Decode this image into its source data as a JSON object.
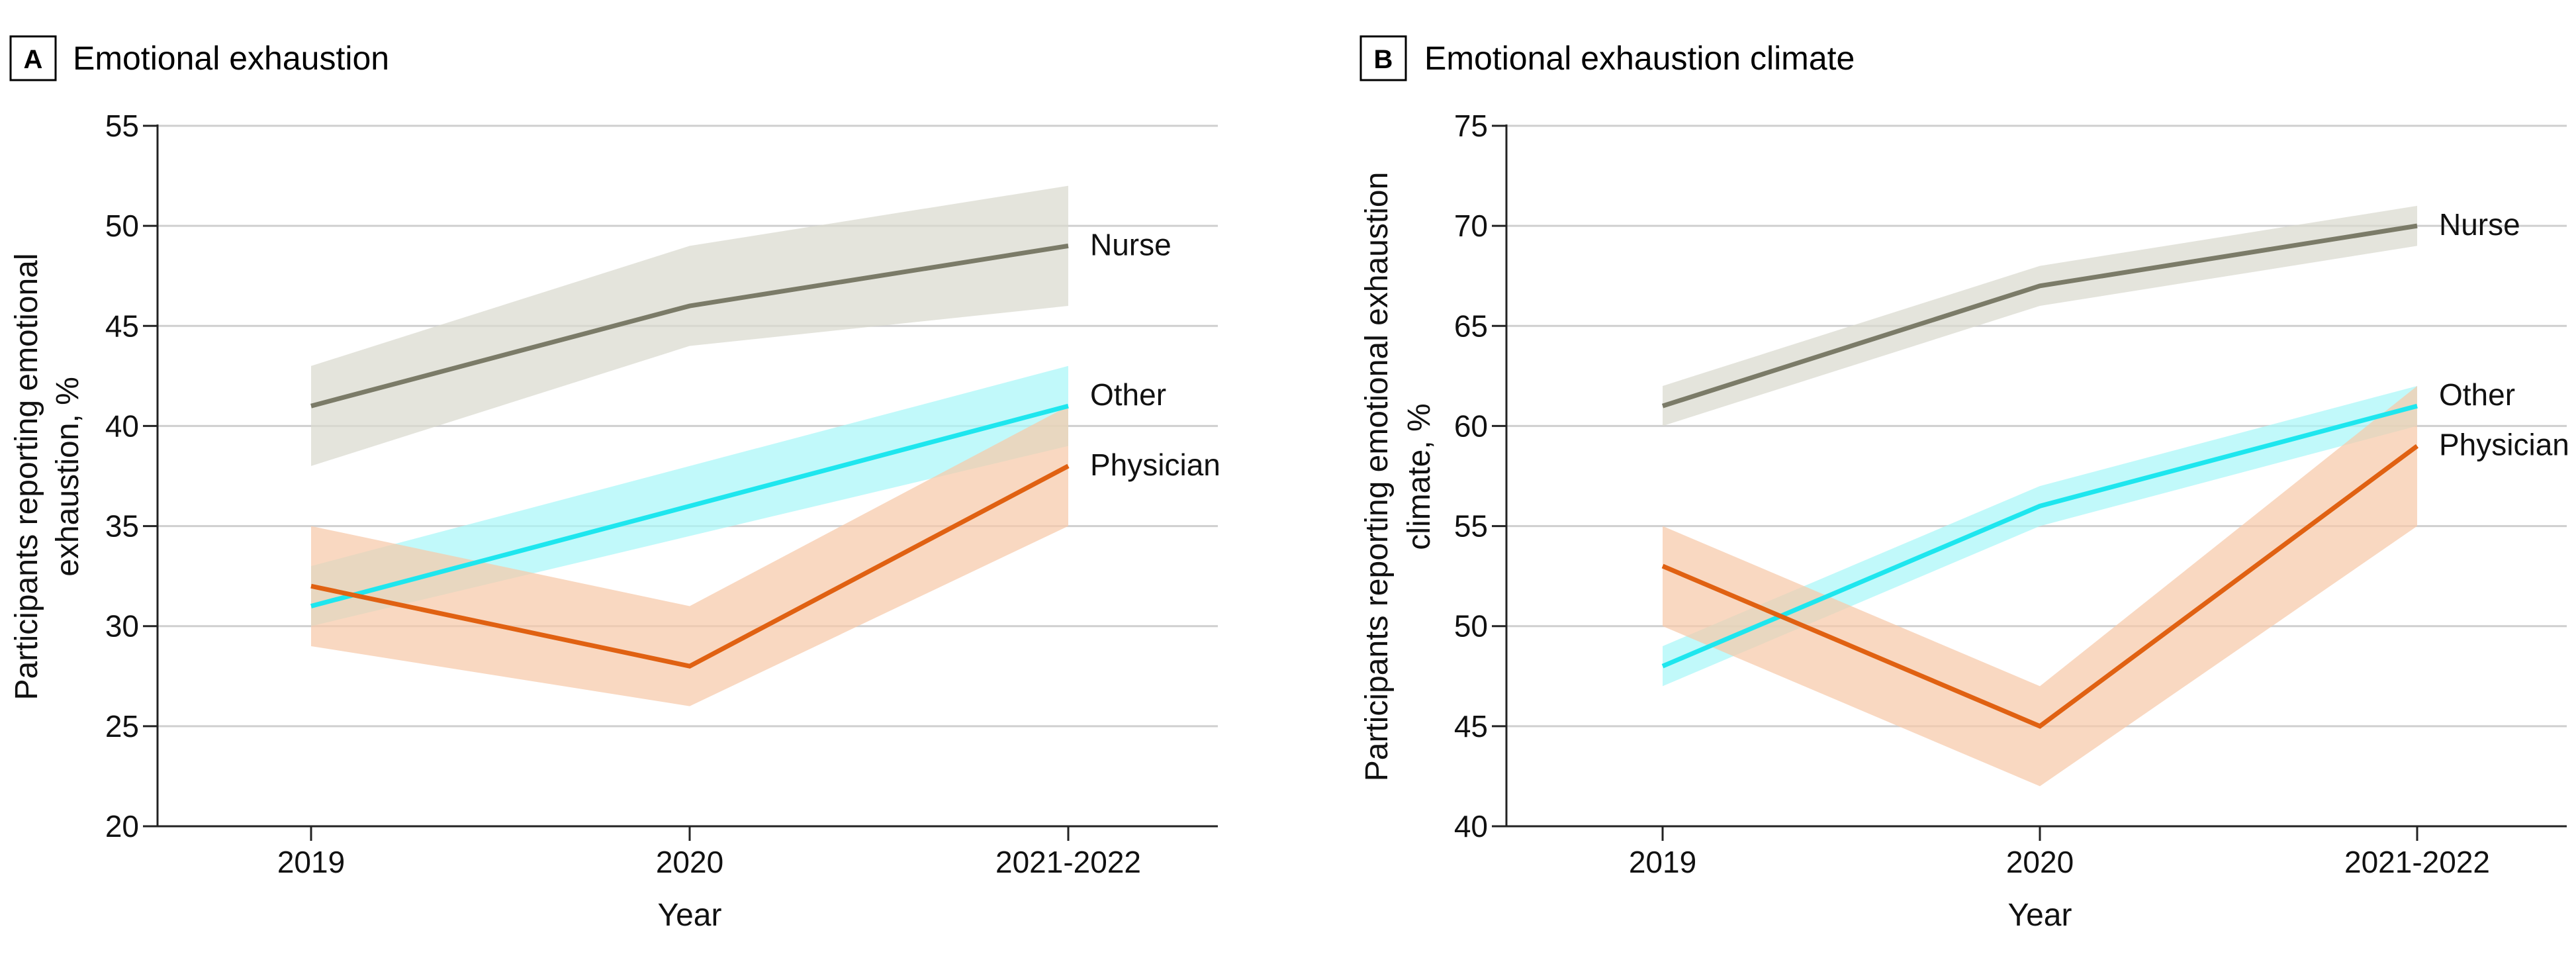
{
  "chart_data": [
    {
      "type": "line",
      "panel_letter": "A",
      "title": "Emotional exhaustion",
      "xlabel": "Year",
      "ylabel_lines": [
        "Participants reporting emotional",
        "exhaustion, %"
      ],
      "categories": [
        "2019",
        "2020",
        "2021-2022"
      ],
      "ylim": [
        20,
        55
      ],
      "yticks": [
        20,
        25,
        30,
        35,
        40,
        45,
        50,
        55
      ],
      "grid": true,
      "series": [
        {
          "name": "Nurse",
          "values": [
            41,
            46,
            49
          ],
          "lower": [
            38,
            44,
            46
          ],
          "upper": [
            43,
            49,
            52
          ],
          "color": "#7b7b68",
          "band_color": "#d9d9cf"
        },
        {
          "name": "Other",
          "values": [
            31,
            36,
            41
          ],
          "lower": [
            30,
            34.5,
            39
          ],
          "upper": [
            33,
            38,
            43
          ],
          "color": "#1ee6ee",
          "band_color": "#a9f6f8"
        },
        {
          "name": "Physician",
          "values": [
            32,
            28,
            38
          ],
          "lower": [
            29,
            26,
            35
          ],
          "upper": [
            35,
            31,
            41
          ],
          "color": "#e06112",
          "band_color": "#f6c9a9"
        }
      ]
    },
    {
      "type": "line",
      "panel_letter": "B",
      "title": "Emotional exhaustion climate",
      "xlabel": "Year",
      "ylabel_lines": [
        "Participants reporting emotional exhaustion",
        "climate, %"
      ],
      "categories": [
        "2019",
        "2020",
        "2021-2022"
      ],
      "ylim": [
        40,
        75
      ],
      "yticks": [
        40,
        45,
        50,
        55,
        60,
        65,
        70,
        75
      ],
      "grid": true,
      "series": [
        {
          "name": "Nurse",
          "values": [
            61,
            67,
            70
          ],
          "lower": [
            60,
            66,
            69
          ],
          "upper": [
            62,
            68,
            71
          ],
          "color": "#7b7b68",
          "band_color": "#d9d9cf"
        },
        {
          "name": "Other",
          "values": [
            48,
            56,
            61
          ],
          "lower": [
            47,
            55,
            60
          ],
          "upper": [
            49,
            57,
            62
          ],
          "color": "#1ee6ee",
          "band_color": "#a9f6f8"
        },
        {
          "name": "Physician",
          "values": [
            53,
            45,
            59
          ],
          "lower": [
            50,
            42,
            55
          ],
          "upper": [
            55,
            47,
            62
          ],
          "color": "#e06112",
          "band_color": "#f6c9a9"
        }
      ]
    }
  ]
}
